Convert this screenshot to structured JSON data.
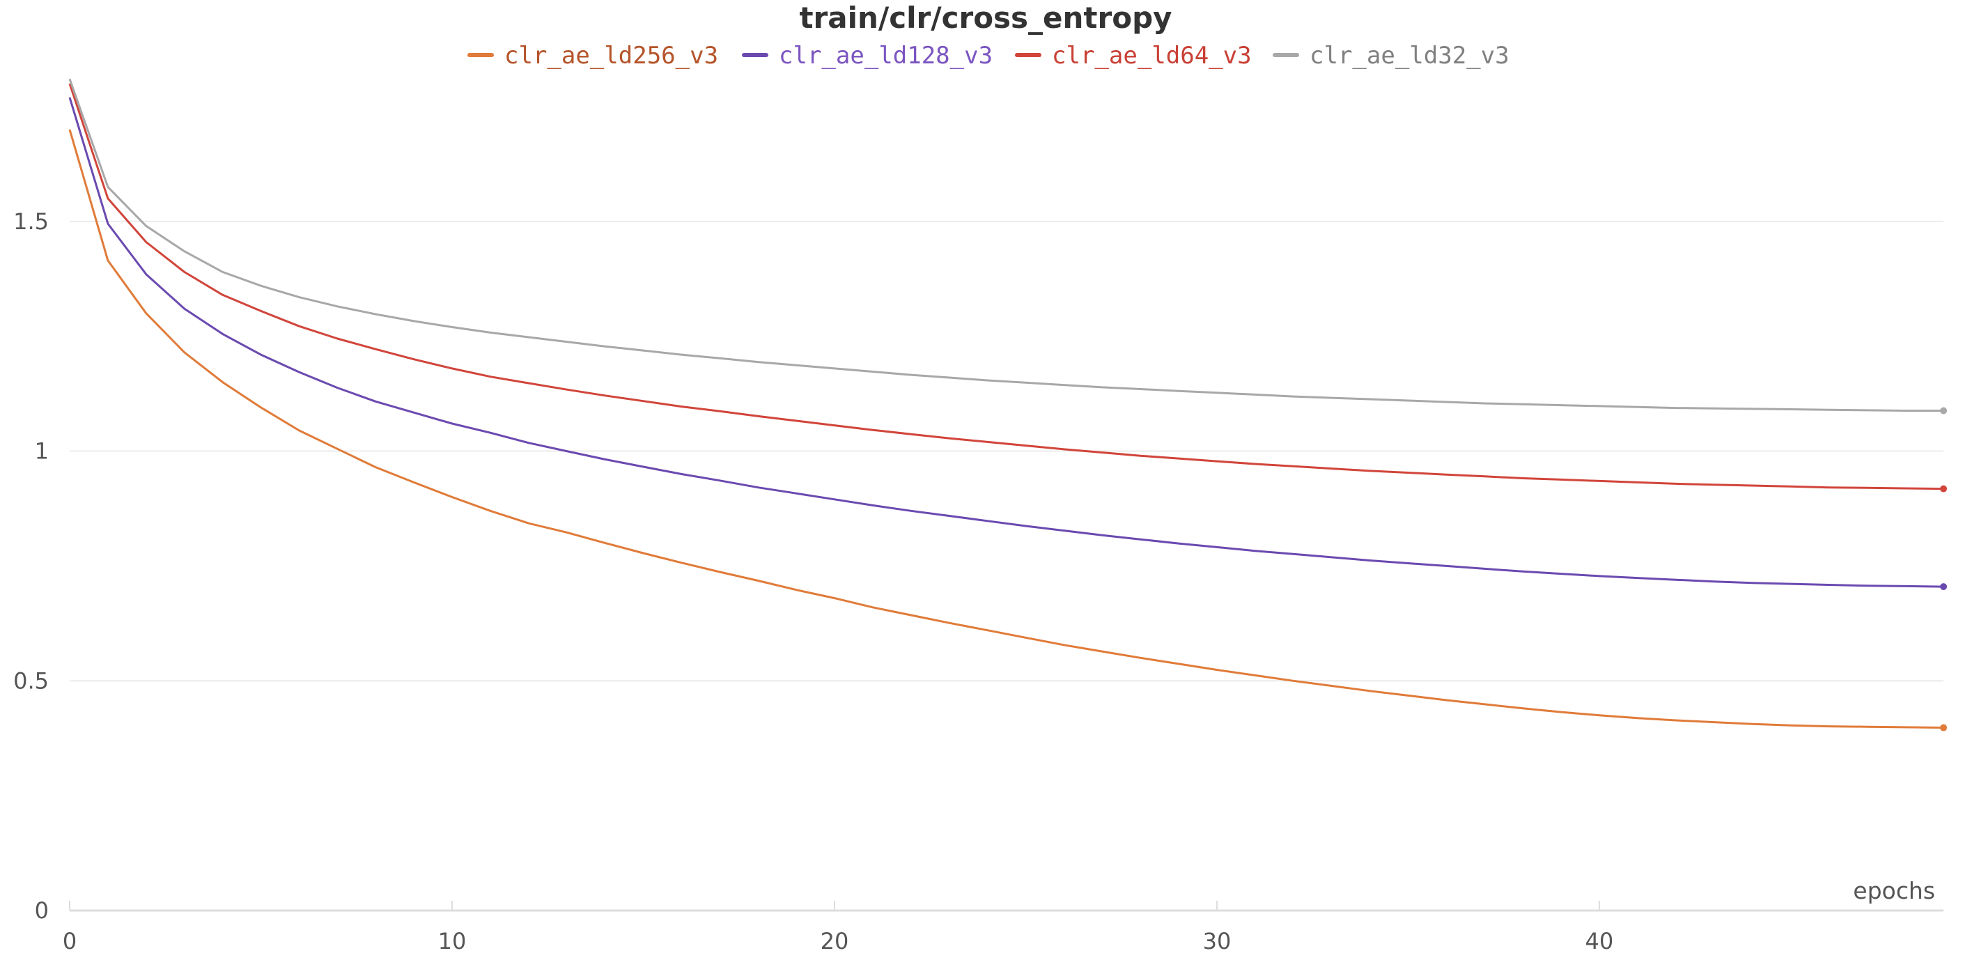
{
  "chart_data": {
    "type": "line",
    "title": "train/clr/cross_entropy",
    "xlabel": "epochs",
    "ylabel": "",
    "xlim": [
      0,
      49
    ],
    "ylim": [
      0,
      1.8
    ],
    "x_ticks": [
      0,
      10,
      20,
      30,
      40
    ],
    "y_ticks": [
      0,
      0.5,
      1,
      1.5
    ],
    "y_tick_labels": [
      "0",
      "0.5",
      "1",
      "1.5"
    ],
    "grid": true,
    "legend_position": "top-center",
    "x": [
      0,
      1,
      2,
      3,
      4,
      5,
      6,
      7,
      8,
      9,
      10,
      11,
      12,
      13,
      14,
      15,
      16,
      17,
      18,
      19,
      20,
      21,
      22,
      23,
      24,
      25,
      26,
      27,
      28,
      29,
      30,
      31,
      32,
      33,
      34,
      35,
      36,
      37,
      38,
      39,
      40,
      41,
      42,
      43,
      44,
      45,
      46,
      47,
      48,
      49
    ],
    "series": [
      {
        "name": "clr_ae_ld256_v3",
        "color": "#e07b39",
        "label_color": "#b5542a",
        "values": [
          1.7,
          1.415,
          1.3,
          1.215,
          1.15,
          1.095,
          1.045,
          1.005,
          0.965,
          0.932,
          0.9,
          0.87,
          0.843,
          0.823,
          0.8,
          0.778,
          0.757,
          0.737,
          0.718,
          0.698,
          0.68,
          0.66,
          0.643,
          0.626,
          0.61,
          0.594,
          0.578,
          0.564,
          0.55,
          0.537,
          0.524,
          0.512,
          0.5,
          0.489,
          0.478,
          0.468,
          0.458,
          0.449,
          0.44,
          0.432,
          0.425,
          0.419,
          0.414,
          0.41,
          0.406,
          0.403,
          0.401,
          0.4,
          0.399,
          0.398
        ]
      },
      {
        "name": "clr_ae_ld128_v3",
        "color": "#6b4ab0",
        "label_color": "#7b55c0",
        "values": [
          1.77,
          1.495,
          1.385,
          1.31,
          1.255,
          1.21,
          1.172,
          1.138,
          1.108,
          1.084,
          1.06,
          1.04,
          1.018,
          1.0,
          0.982,
          0.966,
          0.95,
          0.936,
          0.921,
          0.908,
          0.895,
          0.882,
          0.87,
          0.859,
          0.848,
          0.837,
          0.827,
          0.817,
          0.808,
          0.799,
          0.791,
          0.783,
          0.776,
          0.769,
          0.762,
          0.756,
          0.75,
          0.744,
          0.738,
          0.733,
          0.728,
          0.724,
          0.72,
          0.716,
          0.713,
          0.711,
          0.709,
          0.707,
          0.706,
          0.705
        ]
      },
      {
        "name": "clr_ae_ld64_v3",
        "color": "#d1453b",
        "label_color": "#c94035",
        "values": [
          1.8,
          1.55,
          1.455,
          1.39,
          1.34,
          1.305,
          1.272,
          1.245,
          1.222,
          1.2,
          1.18,
          1.162,
          1.148,
          1.134,
          1.121,
          1.109,
          1.097,
          1.087,
          1.076,
          1.066,
          1.056,
          1.046,
          1.037,
          1.028,
          1.02,
          1.012,
          1.004,
          0.997,
          0.99,
          0.984,
          0.978,
          0.972,
          0.967,
          0.962,
          0.957,
          0.953,
          0.949,
          0.945,
          0.941,
          0.938,
          0.935,
          0.932,
          0.929,
          0.927,
          0.925,
          0.923,
          0.921,
          0.92,
          0.919,
          0.918
        ]
      },
      {
        "name": "clr_ae_ld32_v3",
        "color": "#a8a8a8",
        "label_color": "#808080",
        "values": [
          1.81,
          1.575,
          1.49,
          1.435,
          1.39,
          1.36,
          1.335,
          1.315,
          1.298,
          1.283,
          1.27,
          1.258,
          1.248,
          1.238,
          1.228,
          1.219,
          1.21,
          1.202,
          1.194,
          1.187,
          1.18,
          1.173,
          1.166,
          1.16,
          1.154,
          1.149,
          1.144,
          1.139,
          1.135,
          1.131,
          1.127,
          1.123,
          1.119,
          1.116,
          1.113,
          1.11,
          1.107,
          1.104,
          1.102,
          1.1,
          1.098,
          1.096,
          1.094,
          1.093,
          1.092,
          1.091,
          1.09,
          1.089,
          1.088,
          1.088
        ]
      }
    ]
  }
}
